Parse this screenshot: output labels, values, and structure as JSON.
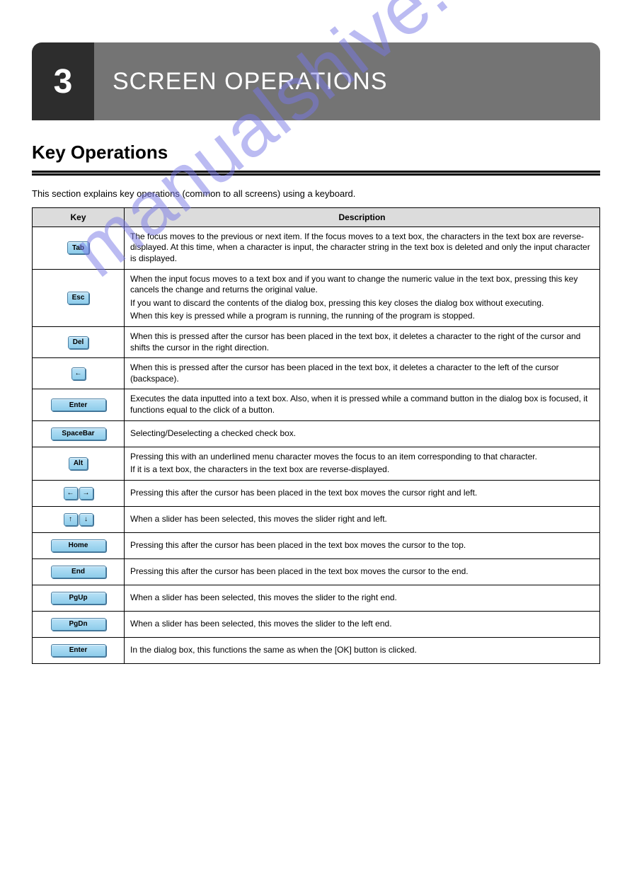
{
  "watermark": "manualshive.com",
  "header": {
    "chapter": "3",
    "title": "SCREEN OPERATIONS"
  },
  "section": "Key Operations",
  "intro": "This section explains key operations (common to all screens) using a keyboard.",
  "table": {
    "headers": {
      "key": "Key",
      "desc": "Description"
    },
    "rows": [
      {
        "key_type": "single",
        "label": "Tab",
        "width": "norm",
        "desc": "The focus moves to the previous or next item. If the focus moves to a text box, the characters in the text box are reverse-displayed. At this time, when a character is input, the character string in the text box is deleted and only the input character is displayed."
      },
      {
        "key_type": "single",
        "label": "Esc",
        "width": "norm",
        "desc_lines": [
          "When the input focus moves to a text box and if you want to change the numeric value in the text box, pressing this key cancels the change and returns the original value.",
          "If you want to discard the contents of the dialog box, pressing this key closes the dialog box without executing.",
          "When this key is pressed while a program is running, the running of the program is stopped."
        ]
      },
      {
        "key_type": "single",
        "label": "Del",
        "width": "norm",
        "desc": "When this is pressed after the cursor has been placed in the text box, it deletes a character to the right of the cursor and shifts the cursor in the right direction."
      },
      {
        "key_type": "arrow-single",
        "arrow": "←",
        "desc": "When this is pressed after the cursor has been placed in the text box, it deletes a character to the left of the cursor (backspace)."
      },
      {
        "key_type": "single",
        "label": "Enter",
        "width": "wide",
        "desc": "Executes the data inputted into a text box. Also, when it is pressed while a command button in the dialog box is focused, it functions equal to the click of a button."
      },
      {
        "key_type": "single",
        "label": "SpaceBar",
        "width": "wide",
        "desc": "Selecting/Deselecting a checked check box."
      },
      {
        "key_type": "single",
        "label": "Alt",
        "width": "norm",
        "desc_lines": [
          "Pressing this with an underlined menu character moves the focus to an item corresponding to that character.",
          "If it is a text box, the characters in the text box are reverse-displayed."
        ]
      },
      {
        "key_type": "pair-lr",
        "desc": "Pressing this after the cursor has been placed in the text box moves the cursor right and left."
      },
      {
        "key_type": "pair-ud",
        "desc": "When a slider has been selected, this moves the slider right and left."
      },
      {
        "key_type": "single",
        "label": "Home",
        "width": "wide",
        "desc": "Pressing this after the cursor has been placed in the text box moves the cursor to the top."
      },
      {
        "key_type": "single",
        "label": "End",
        "width": "wide",
        "desc": "Pressing this after the cursor has been placed in the text box moves the cursor to the end."
      },
      {
        "key_type": "single",
        "label": "PgUp",
        "width": "wide",
        "desc": "When a slider has been selected, this moves the slider to the right end."
      },
      {
        "key_type": "single",
        "label": "PgDn",
        "width": "wide",
        "desc": "When a slider has been selected, this moves the slider to the left end."
      },
      {
        "key_type": "single",
        "label": "Enter",
        "width": "wide",
        "desc": "In the dialog box, this functions the same as when the [OK] button is clicked."
      }
    ]
  },
  "colors": {
    "keycap_bg_top": "#b9e2f7",
    "keycap_bg_bottom": "#8dccea",
    "keycap_border": "#4a7fa3",
    "header_dark": "#2d2d2d",
    "header_grey": "#747474",
    "th_bg": "#dcdcdc"
  }
}
